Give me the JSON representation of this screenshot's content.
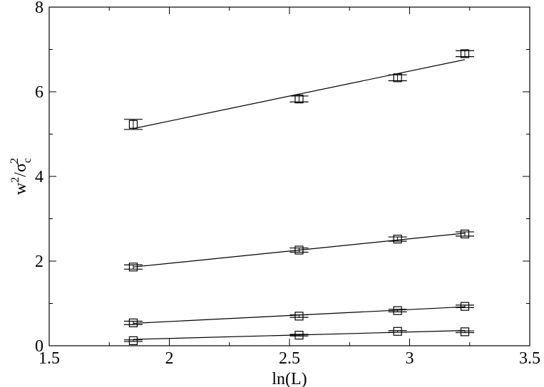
{
  "chart_data": {
    "type": "scatter",
    "title": "",
    "xlabel": "ln(L)",
    "ylabel": {
      "base1": "w",
      "sup1": "2",
      "slash": "/",
      "base2": "σ",
      "sub2": "c",
      "sup2": "2"
    },
    "xlim": [
      1.5,
      3.5
    ],
    "ylim": [
      0,
      8
    ],
    "xticks": [
      1.5,
      2,
      2.5,
      3,
      3.5
    ],
    "xtick_labels": [
      "1.5",
      "2",
      "2.5",
      "3",
      "3.5"
    ],
    "yticks": [
      0,
      2,
      4,
      6,
      8
    ],
    "ytick_labels": [
      "0",
      "2",
      "4",
      "6",
      "8"
    ],
    "grid": false,
    "legend": "none",
    "marker": "open-square",
    "x": [
      1.85,
      2.54,
      2.95,
      3.23
    ],
    "series": [
      {
        "values": [
          5.23,
          5.83,
          6.33,
          6.9
        ],
        "errors": [
          0.12,
          0.07,
          0.07,
          0.07
        ],
        "fit": [
          [
            1.85,
            5.13
          ],
          [
            3.23,
            6.76
          ]
        ]
      },
      {
        "values": [
          1.86,
          2.26,
          2.52,
          2.64
        ],
        "errors": [
          0.05,
          0.05,
          0.05,
          0.05
        ],
        "fit": [
          [
            1.85,
            1.86
          ],
          [
            3.23,
            2.66
          ]
        ]
      },
      {
        "values": [
          0.54,
          0.7,
          0.83,
          0.93
        ],
        "errors": [
          0.04,
          0.03,
          0.03,
          0.03
        ],
        "fit": [
          [
            1.85,
            0.53
          ],
          [
            3.23,
            0.92
          ]
        ]
      },
      {
        "values": [
          0.12,
          0.25,
          0.34,
          0.33
        ],
        "errors": [
          0.02,
          0.02,
          0.02,
          0.02
        ],
        "fit": [
          [
            1.85,
            0.15
          ],
          [
            3.23,
            0.36
          ]
        ]
      }
    ]
  }
}
